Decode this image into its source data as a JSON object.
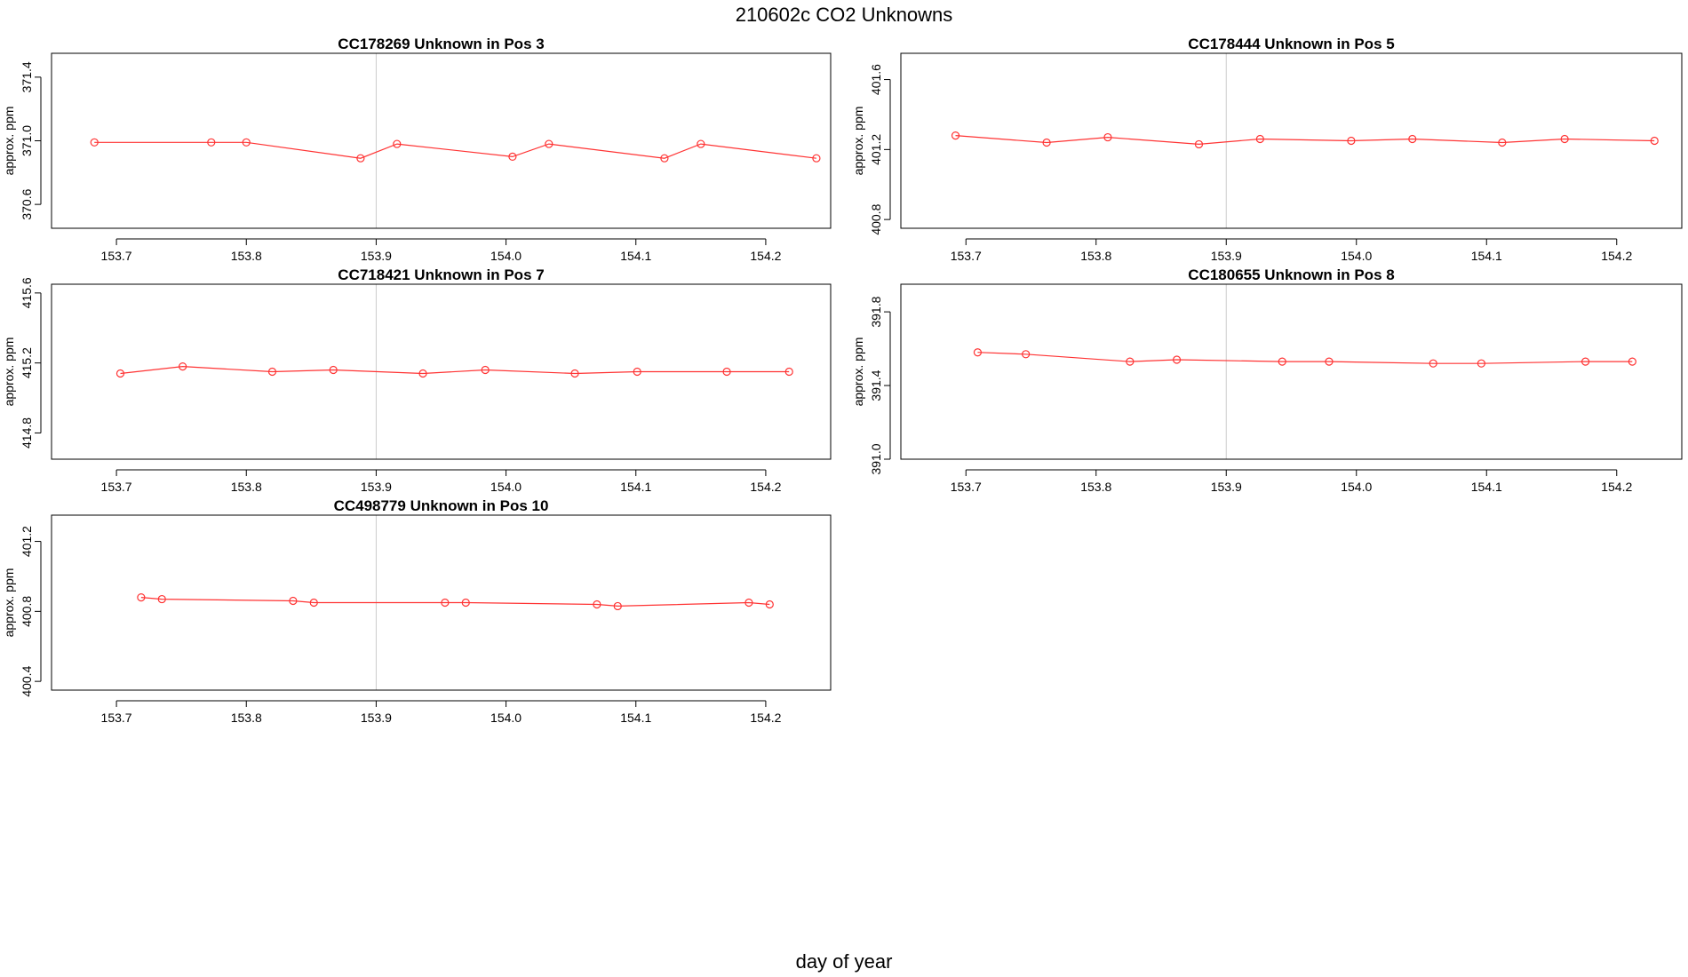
{
  "page": {
    "title": "210602c  CO2 Unknowns",
    "xlabel": "day of year"
  },
  "style": {
    "series_color": "#ff3333",
    "vline_color": "#cccccc",
    "frame_color": "#000000"
  },
  "chart_data": [
    {
      "type": "line",
      "title": "CC178269    Unknown in Pos 3",
      "ylabel": "approx. ppm",
      "xlim": [
        153.65,
        154.25
      ],
      "ylim": [
        370.45,
        371.55
      ],
      "xticks": [
        153.7,
        153.8,
        153.9,
        154.0,
        154.1,
        154.2
      ],
      "yticks": [
        370.6,
        371.0,
        371.4
      ],
      "vlines": [
        153.9,
        154.25
      ],
      "x": [
        153.683,
        153.773,
        153.8,
        153.888,
        153.916,
        154.005,
        154.033,
        154.122,
        154.15,
        154.239
      ],
      "y": [
        370.99,
        370.99,
        370.99,
        370.89,
        370.98,
        370.9,
        370.98,
        370.89,
        370.98,
        370.89
      ]
    },
    {
      "type": "line",
      "title": "CC178444    Unknown in Pos 5",
      "ylabel": "approx. ppm",
      "xlim": [
        153.65,
        154.25
      ],
      "ylim": [
        400.75,
        401.75
      ],
      "xticks": [
        153.7,
        153.8,
        153.9,
        154.0,
        154.1,
        154.2
      ],
      "yticks": [
        400.8,
        401.2,
        401.6
      ],
      "vlines": [
        153.9,
        154.25
      ],
      "x": [
        153.692,
        153.762,
        153.809,
        153.879,
        153.926,
        153.996,
        154.043,
        154.112,
        154.16,
        154.229
      ],
      "y": [
        401.28,
        401.24,
        401.27,
        401.23,
        401.26,
        401.25,
        401.26,
        401.24,
        401.26,
        401.25
      ]
    },
    {
      "type": "line",
      "title": "CC718421    Unknown in Pos 7",
      "ylabel": "approx. ppm",
      "xlim": [
        153.65,
        154.25
      ],
      "ylim": [
        414.65,
        415.65
      ],
      "xticks": [
        153.7,
        153.8,
        153.9,
        154.0,
        154.1,
        154.2
      ],
      "yticks": [
        414.8,
        415.2,
        415.6
      ],
      "vlines": [
        153.9,
        154.25
      ],
      "x": [
        153.703,
        153.751,
        153.82,
        153.867,
        153.936,
        153.984,
        154.053,
        154.101,
        154.17,
        154.218
      ],
      "y": [
        415.14,
        415.18,
        415.15,
        415.16,
        415.14,
        415.16,
        415.14,
        415.15,
        415.15,
        415.15
      ]
    },
    {
      "type": "line",
      "title": "CC180655    Unknown in Pos 8",
      "ylabel": "approx. ppm",
      "xlim": [
        153.65,
        154.25
      ],
      "ylim": [
        391.0,
        391.95
      ],
      "xticks": [
        153.7,
        153.8,
        153.9,
        154.0,
        154.1,
        154.2
      ],
      "yticks": [
        391.0,
        391.4,
        391.8
      ],
      "vlines": [
        153.9,
        154.25
      ],
      "x": [
        153.709,
        153.746,
        153.826,
        153.862,
        153.943,
        153.979,
        154.059,
        154.096,
        154.176,
        154.212
      ],
      "y": [
        391.58,
        391.57,
        391.53,
        391.54,
        391.53,
        391.53,
        391.52,
        391.52,
        391.53,
        391.53
      ]
    },
    {
      "type": "line",
      "title": "CC498779    Unknown in Pos 10",
      "ylabel": "approx. ppm",
      "xlim": [
        153.65,
        154.25
      ],
      "ylim": [
        400.35,
        401.35
      ],
      "xticks": [
        153.7,
        153.8,
        153.9,
        154.0,
        154.1,
        154.2
      ],
      "yticks": [
        400.4,
        400.8,
        401.2
      ],
      "vlines": [
        153.9,
        154.25
      ],
      "x": [
        153.719,
        153.735,
        153.836,
        153.852,
        153.953,
        153.969,
        154.07,
        154.086,
        154.187,
        154.203
      ],
      "y": [
        400.88,
        400.87,
        400.86,
        400.85,
        400.85,
        400.85,
        400.84,
        400.83,
        400.85,
        400.84
      ]
    }
  ]
}
